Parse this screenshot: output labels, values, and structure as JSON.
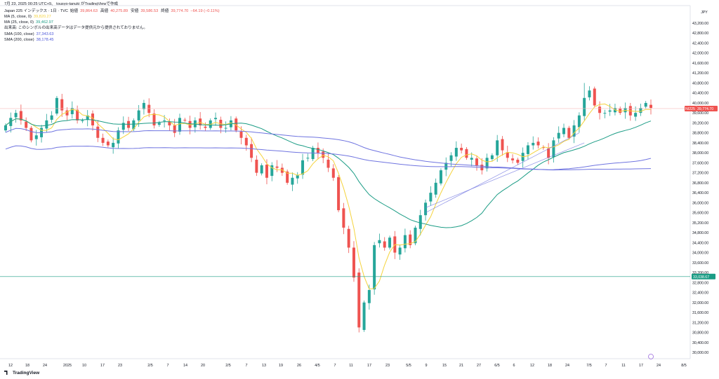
{
  "timestamp": "7月 23, 2025 00:25 UTC+9、 tousyo-tanuki がTradingViewで作成",
  "symbol_line": {
    "name": "Japan 225 インデックス · 1日 · TVC",
    "open_label": "始値",
    "open": "39,864.63",
    "high_label": "高値",
    "high": "40,275.89",
    "low_label": "安値",
    "low": "39,586.53",
    "close_label": "終値",
    "close": "39,774.70",
    "change": "−64.19 (−0.11%)"
  },
  "indicators": [
    {
      "label": "MA (5, close, 0)",
      "value": "39,820.27",
      "color": "#f5d33d"
    },
    {
      "label": "MA (25, close, 0)",
      "value": "39,462.97",
      "color": "#1b9c85"
    },
    {
      "label": "出来高: このシンボルの出来高データはデータ提供元から提供されておりません。",
      "value": "",
      "color": "#131722"
    },
    {
      "label": "SMA (100, close)",
      "value": "37,343.63",
      "color": "#4a55d8"
    },
    {
      "label": "SMA (200, close)",
      "value": "38,178.45",
      "color": "#4a55d8"
    }
  ],
  "currency": "JPY",
  "footer": "TradingView",
  "price_tag": {
    "symbol": "NI225",
    "value": "39,774.70"
  },
  "hline_tag": "33,038.67",
  "colors": {
    "up": "#26a69a",
    "down": "#ef5350",
    "ma5": "#f5d33d",
    "ma25": "#1b9c85",
    "sma": "#6f74e0"
  },
  "chart_data": {
    "type": "candlestick",
    "y_ticks": [
      "43,200.00",
      "42,800.00",
      "42,400.00",
      "42,000.00",
      "41,600.00",
      "41,200.00",
      "40,800.00",
      "40,400.00",
      "40,000.00",
      "39,600.00",
      "39,200.00",
      "38,800.00",
      "38,400.00",
      "38,000.00",
      "37,600.00",
      "37,200.00",
      "36,800.00",
      "36,400.00",
      "36,000.00",
      "35,600.00",
      "35,200.00",
      "34,800.00",
      "34,400.00",
      "34,000.00",
      "33,600.00",
      "33,200.00",
      "32,800.00",
      "32,400.00",
      "32,000.00",
      "31,600.00",
      "31,200.00",
      "30,800.00",
      "30,400.00",
      "30,000.00"
    ],
    "ylim": [
      29700,
      43500
    ],
    "x_ticks": [
      "12",
      "18",
      "24",
      "2025",
      "10",
      "17",
      "23",
      "2/5",
      "7",
      "14",
      "20",
      "2/5",
      "7",
      "13",
      "19",
      "26",
      "4/5",
      "7",
      "11",
      "17",
      "23",
      "5/5",
      "9",
      "15",
      "21",
      "27",
      "6/5",
      "6",
      "12",
      "18",
      "24",
      "7/5",
      "7",
      "11",
      "17",
      "24",
      "8/5"
    ],
    "horizontal_lines": [
      39774.7,
      33038.67
    ],
    "closes": [
      39100,
      39400,
      39600,
      39300,
      39000,
      38500,
      38700,
      39000,
      39300,
      39500,
      40200,
      39700,
      39500,
      39800,
      39300,
      39300,
      39500,
      39100,
      38600,
      38400,
      38300,
      38400,
      38900,
      39200,
      39000,
      39300,
      39700,
      40000,
      39600,
      39100,
      39200,
      39300,
      39100,
      38800,
      39400,
      39300,
      39000,
      39300,
      39100,
      39000,
      39300,
      39400,
      39000,
      39000,
      39300,
      38900,
      38600,
      38300,
      37800,
      37200,
      37500,
      37000,
      37500,
      37400,
      37200,
      36800,
      37000,
      37100,
      37700,
      37800,
      38200,
      38000,
      37800,
      37400,
      37000,
      35700,
      35000,
      34200,
      33000,
      31000,
      32000,
      32500,
      34300,
      34500,
      34200,
      34600,
      34000,
      34200,
      34700,
      34300,
      35000,
      35500,
      36000,
      36400,
      36800,
      37300,
      37600,
      37900,
      38200,
      38100,
      37800,
      37800,
      37500,
      37300,
      37800,
      37900,
      38500,
      38100,
      37800,
      37700,
      37600,
      38000,
      38300,
      38400,
      38300,
      38200,
      37800,
      38500,
      38800,
      39000,
      38600,
      39100,
      39500,
      40200,
      40500,
      39900,
      39600,
      39600,
      39700,
      39800,
      39600,
      39800,
      39500,
      39600,
      39800,
      40000,
      39800
    ]
  }
}
